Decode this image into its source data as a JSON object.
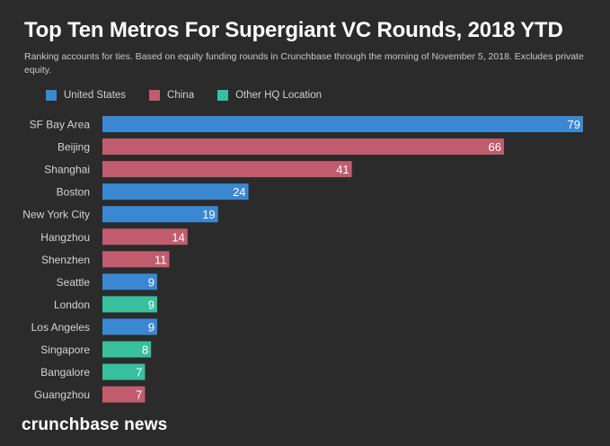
{
  "chart_data": {
    "type": "bar",
    "orientation": "horizontal",
    "title": "Top Ten Metros For Supergiant VC Rounds, 2018 YTD",
    "subtitle": "Ranking accounts for ties. Based on equity funding rounds in Crunchbase through the morning of November 5, 2018. Excludes private equity.",
    "legend": [
      {
        "name": "United States",
        "color": "#3b88d2"
      },
      {
        "name": "China",
        "color": "#c15c6f"
      },
      {
        "name": "Other HQ Location",
        "color": "#38bf9c"
      }
    ],
    "categories": [
      "SF Bay Area",
      "Beijing",
      "Shanghai",
      "Boston",
      "New York City",
      "Hangzhou",
      "Shenzhen",
      "Seattle",
      "London",
      "Los Angeles",
      "Singapore",
      "Bangalore",
      "Guangzhou"
    ],
    "values": [
      79,
      66,
      41,
      24,
      19,
      14,
      11,
      9,
      9,
      9,
      8,
      7,
      7
    ],
    "groups": [
      "United States",
      "China",
      "China",
      "United States",
      "United States",
      "China",
      "China",
      "United States",
      "Other HQ Location",
      "United States",
      "Other HQ Location",
      "Other HQ Location",
      "China"
    ],
    "xlim": [
      0,
      79
    ],
    "grid": false
  },
  "footer": {
    "logo": "crunchbase news"
  }
}
